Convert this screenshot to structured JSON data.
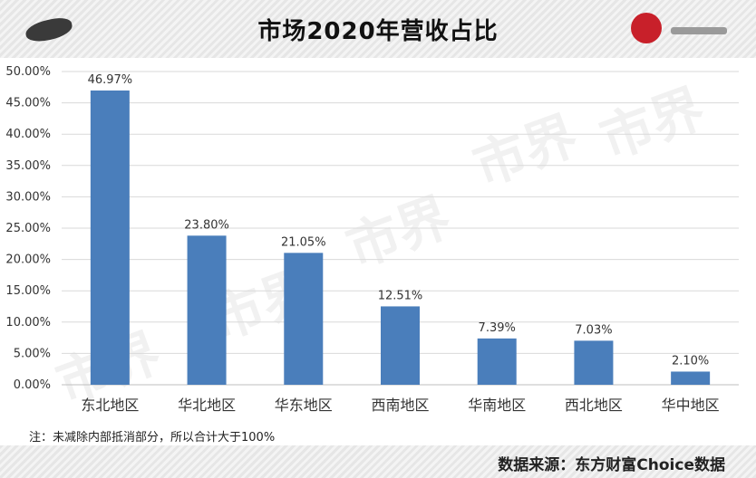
{
  "header": {
    "title": "市场2020年营收占比"
  },
  "footer": {
    "note": "注：未减除内部抵消部分，所以合计大于100%",
    "source": "数据来源：东方财富Choice数据"
  },
  "watermark": "市界",
  "colors": {
    "bar": "#4a7ebb",
    "grid": "#d9d9d9",
    "axis": "#bfbfbf",
    "text": "#333333"
  },
  "chart_data": {
    "type": "bar",
    "categories": [
      "东北地区",
      "华北地区",
      "华东地区",
      "西南地区",
      "华南地区",
      "西北地区",
      "华中地区"
    ],
    "values": [
      46.97,
      23.8,
      21.05,
      12.51,
      7.39,
      7.03,
      2.1
    ],
    "data_labels": [
      "46.97%",
      "23.80%",
      "21.05%",
      "12.51%",
      "7.39%",
      "7.03%",
      "2.10%"
    ],
    "y_ticks": [
      "0.00%",
      "5.00%",
      "10.00%",
      "15.00%",
      "20.00%",
      "25.00%",
      "30.00%",
      "35.00%",
      "40.00%",
      "45.00%",
      "50.00%"
    ],
    "ylim": [
      0,
      50
    ],
    "grid": true,
    "legend": false
  }
}
